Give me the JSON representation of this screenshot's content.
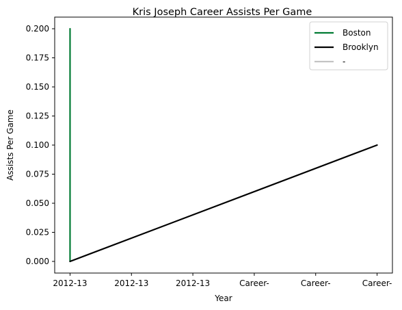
{
  "chart_data": {
    "type": "line",
    "title": "Kris Joseph Career Assists Per Game",
    "xlabel": "Year",
    "ylabel": "Assists Per Game",
    "x_ticks": [
      "2012-13",
      "2012-13",
      "2012-13",
      "Career-",
      "Career-",
      "Career-"
    ],
    "y_ticks": [
      "0.000",
      "0.025",
      "0.050",
      "0.075",
      "0.100",
      "0.125",
      "0.150",
      "0.175",
      "0.200"
    ],
    "xlim": [
      -0.25,
      5.25
    ],
    "ylim": [
      -0.01,
      0.21
    ],
    "grid": false,
    "legend_position": "top-right",
    "series": [
      {
        "name": "Boston",
        "color": "#007A33",
        "x": [
          0,
          0
        ],
        "y": [
          0.2,
          0.0
        ]
      },
      {
        "name": "Brooklyn",
        "color": "#000000",
        "x": [
          0,
          5
        ],
        "y": [
          0.0,
          0.1
        ]
      },
      {
        "name": "-",
        "color": "#C4C4C4",
        "x": [],
        "y": []
      }
    ]
  }
}
